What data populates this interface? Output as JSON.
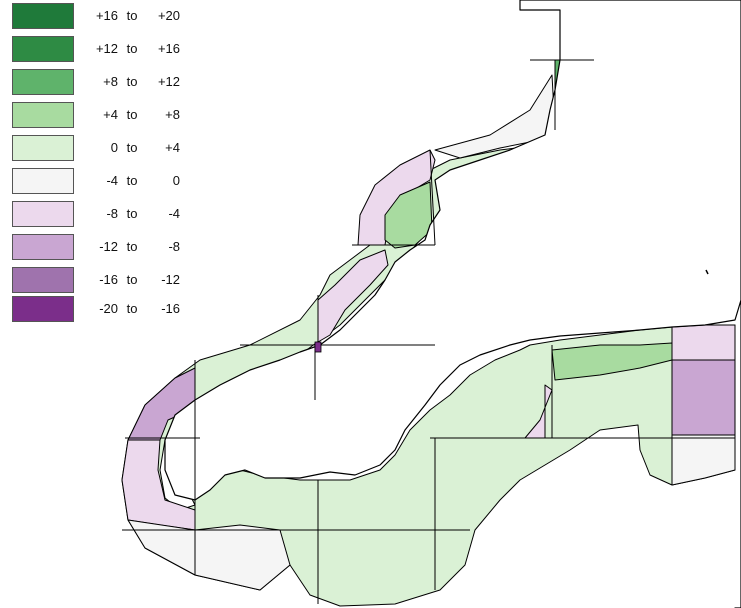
{
  "legend": {
    "colors": {
      "p16_20": "#1f7a3a",
      "p12_16": "#2e8b44",
      "p8_12": "#5fb36b",
      "p4_8": "#a8dba0",
      "p0_4": "#daf1d5",
      "n4_0": "#f5f5f5",
      "n8_n4": "#ecd9ed",
      "n12_n8": "#c9a6d2",
      "n16_n12": "#9f73ad",
      "n20_n16": "#7b2e8a"
    },
    "items": [
      {
        "from": "+16",
        "sep": "to",
        "to": "+20",
        "color": "#1f7a3a"
      },
      {
        "from": "+12",
        "sep": "to",
        "to": "+16",
        "color": "#2e8b44"
      },
      {
        "from": "+8",
        "sep": "to",
        "to": "+12",
        "color": "#5fb36b"
      },
      {
        "from": "+4",
        "sep": "to",
        "to": "+8",
        "color": "#a8dba0"
      },
      {
        "from": "0",
        "sep": "to",
        "to": "+4",
        "color": "#daf1d5"
      },
      {
        "from": "-4",
        "sep": "to",
        "to": "0",
        "color": "#f5f5f5"
      },
      {
        "from": "-8",
        "sep": "to",
        "to": "-4",
        "color": "#ecd9ed"
      },
      {
        "from": "-12",
        "sep": "to",
        "to": "-8",
        "color": "#c9a6d2"
      },
      {
        "from": "-16",
        "sep": "to",
        "to": "-12",
        "color": "#9f73ad"
      },
      {
        "from": "-20",
        "sep": "to",
        "to": "-16",
        "color": "#7b2e8a"
      }
    ]
  }
}
